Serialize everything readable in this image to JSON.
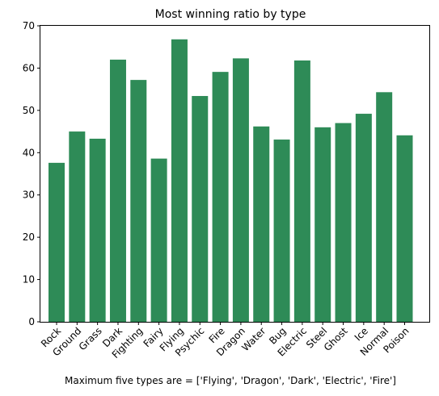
{
  "chart_data": {
    "type": "bar",
    "title": "Most winning ratio by type",
    "xlabel": "Maximum five types are = ['Flying', 'Dragon', 'Dark', 'Electric', 'Fire']",
    "ylabel": "",
    "categories": [
      "Rock",
      "Ground",
      "Grass",
      "Dark",
      "Fighting",
      "Fairy",
      "Flying",
      "Psychic",
      "Fire",
      "Dragon",
      "Water",
      "Bug",
      "Electric",
      "Steel",
      "Ghost",
      "Ice",
      "Normal",
      "Poison"
    ],
    "values": [
      37.6,
      45.0,
      43.3,
      62.0,
      57.2,
      38.6,
      66.8,
      53.4,
      59.1,
      62.3,
      46.2,
      43.1,
      61.8,
      46.0,
      47.0,
      49.2,
      54.3,
      44.1
    ],
    "ylim": [
      0,
      70
    ],
    "yticks": [
      0,
      10,
      20,
      30,
      40,
      50,
      60,
      70
    ],
    "bar_color": "#2e8b57",
    "grid": false
  }
}
